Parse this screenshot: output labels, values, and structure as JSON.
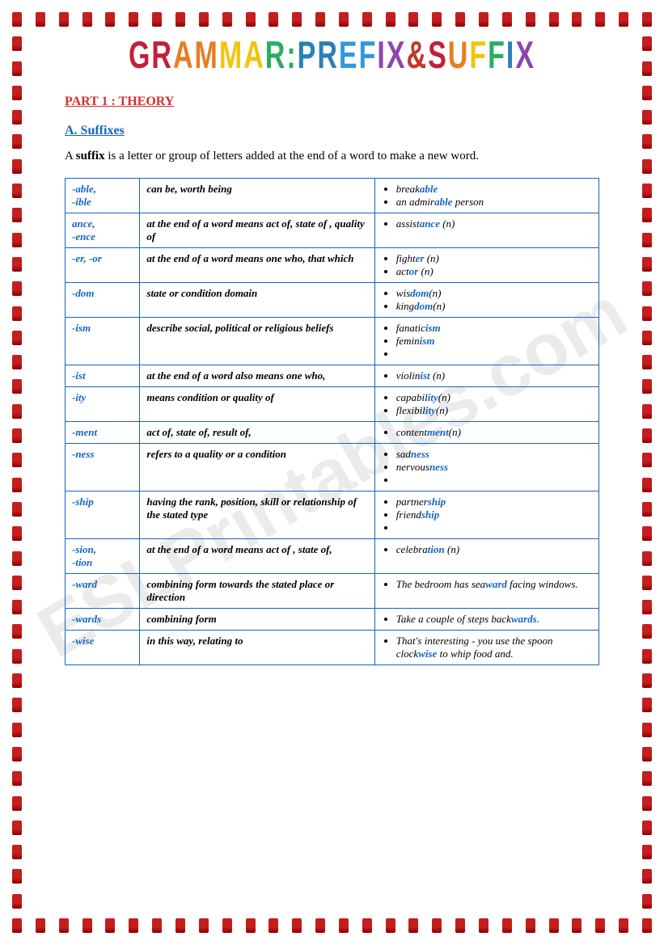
{
  "title_chars": [
    {
      "t": "G",
      "c": "c1"
    },
    {
      "t": "R",
      "c": "c1"
    },
    {
      "t": "A",
      "c": "c2"
    },
    {
      "t": "M",
      "c": "c2"
    },
    {
      "t": "M",
      "c": "c3"
    },
    {
      "t": "A",
      "c": "c3"
    },
    {
      "t": "R",
      "c": "c4"
    },
    {
      "t": " ",
      "c": "c4"
    },
    {
      "t": ":",
      "c": "c4"
    },
    {
      "t": " ",
      "c": "c4"
    },
    {
      "t": "P",
      "c": "c5"
    },
    {
      "t": "R",
      "c": "c5"
    },
    {
      "t": "E",
      "c": "c6"
    },
    {
      "t": "F",
      "c": "c6"
    },
    {
      "t": "I",
      "c": "c7"
    },
    {
      "t": "X",
      "c": "c7"
    },
    {
      "t": " ",
      "c": "c7"
    },
    {
      "t": "&",
      "c": "c8"
    },
    {
      "t": " ",
      "c": "c8"
    },
    {
      "t": "S",
      "c": "c1"
    },
    {
      "t": "U",
      "c": "c2"
    },
    {
      "t": "F",
      "c": "c3"
    },
    {
      "t": "F",
      "c": "c4"
    },
    {
      "t": "I",
      "c": "c5"
    },
    {
      "t": "X",
      "c": "c7"
    }
  ],
  "part_heading": "PART 1 : THEORY",
  "section_heading": "A. Suffixes",
  "intro_prefix": "A ",
  "intro_bold": "suffix",
  "intro_rest": " is a letter or group of letters added at the end of a word to make a new word.",
  "watermark": "ESLPrintables.com",
  "border": {
    "item_color": "#c41e1e",
    "count_horizontal": 28,
    "count_vertical": 38
  },
  "table": {
    "border_color": "#1565c0",
    "rows": [
      {
        "suffix": "-able,\n-ible",
        "meaning": "can be, worth being",
        "examples": [
          {
            "pre": "break",
            "hl": "able",
            "post": ""
          },
          {
            "pre": "an admir",
            "hl": "able",
            "post": " person"
          }
        ]
      },
      {
        "suffix": "ance,\n-ence",
        "meaning": "at the end of a word means act of, state of , quality of",
        "examples": [
          {
            "pre": "assist",
            "hl": "ance",
            "post": " (n)"
          }
        ]
      },
      {
        "suffix": "-er, -or",
        "meaning": "at the end of a word means one who, that which",
        "examples": [
          {
            "pre": "fight",
            "hl": "er",
            "post": " (n)"
          },
          {
            "pre": "act",
            "hl": "or",
            "post": " (n)"
          }
        ]
      },
      {
        "suffix": "-dom",
        "meaning": "state or condition domain",
        "examples": [
          {
            "pre": "wis",
            "hl": "dom",
            "post": "(n)"
          },
          {
            "pre": "king",
            "hl": "dom",
            "post": "(n)"
          }
        ]
      },
      {
        "suffix": "-ism",
        "meaning": "describe social, political or religious beliefs",
        "examples": [
          {
            "pre": "fanatic",
            "hl": "ism",
            "post": ""
          },
          {
            "pre": "femin",
            "hl": "ism",
            "post": ""
          },
          {
            "pre": "",
            "hl": "",
            "post": ""
          }
        ]
      },
      {
        "suffix": "-ist",
        "meaning": "at the end of a word also means one who,",
        "examples": [
          {
            "pre": "violin",
            "hl": "ist",
            "post": " (n)"
          }
        ]
      },
      {
        "suffix": "-ity",
        "meaning": "means condition or quality of",
        "examples": [
          {
            "pre": "capabil",
            "hl": "ity",
            "post": "(n) flexibil"
          },
          {
            "pre": "",
            "hl": "ity",
            "post": "(n)",
            "inline": true
          }
        ],
        "examples_raw": [
          "capabil|ity|(n)",
          "flexibil|ity|(n)"
        ]
      },
      {
        "suffix": "-ment",
        "meaning": "act of, state of, result of,",
        "examples": [
          {
            "pre": "content",
            "hl": "ment",
            "post": "(n)"
          }
        ]
      },
      {
        "suffix": "-ness",
        "meaning": "refers to a quality or a condition",
        "examples": [
          {
            "pre": "sad",
            "hl": "ness",
            "post": ""
          },
          {
            "pre": "nervous",
            "hl": "ness",
            "post": ""
          },
          {
            "pre": "",
            "hl": "",
            "post": ""
          }
        ]
      },
      {
        "suffix": "-ship",
        "meaning": "having the rank, position, skill or relationship of the stated type",
        "examples": [
          {
            "pre": "partner",
            "hl": "ship",
            "post": ""
          },
          {
            "pre": "friend",
            "hl": "ship",
            "post": ""
          },
          {
            "pre": "",
            "hl": "",
            "post": ""
          }
        ]
      },
      {
        "suffix": "-sion,\n-tion",
        "meaning": "at the end of a word means act of , state of,",
        "examples": [
          {
            "pre": "celebra",
            "hl": "tion",
            "post": " (n)"
          }
        ]
      },
      {
        "suffix": "-ward",
        "meaning": "combining form towards the stated place or direction",
        "examples": [
          {
            "pre": "The bedroom has sea",
            "hl": "ward",
            "post": " facing windows."
          }
        ]
      },
      {
        "suffix": "-wards",
        "meaning": "combining form",
        "examples": [
          {
            "pre": "Take a couple of steps back",
            "hl": "wards",
            "post": "."
          }
        ]
      },
      {
        "suffix": "-wise",
        "meaning": "in this way, relating to",
        "examples": [
          {
            "pre": "That's interesting - you use the spoon clock",
            "hl": "wise",
            "post": " to whip food and."
          }
        ]
      }
    ]
  }
}
